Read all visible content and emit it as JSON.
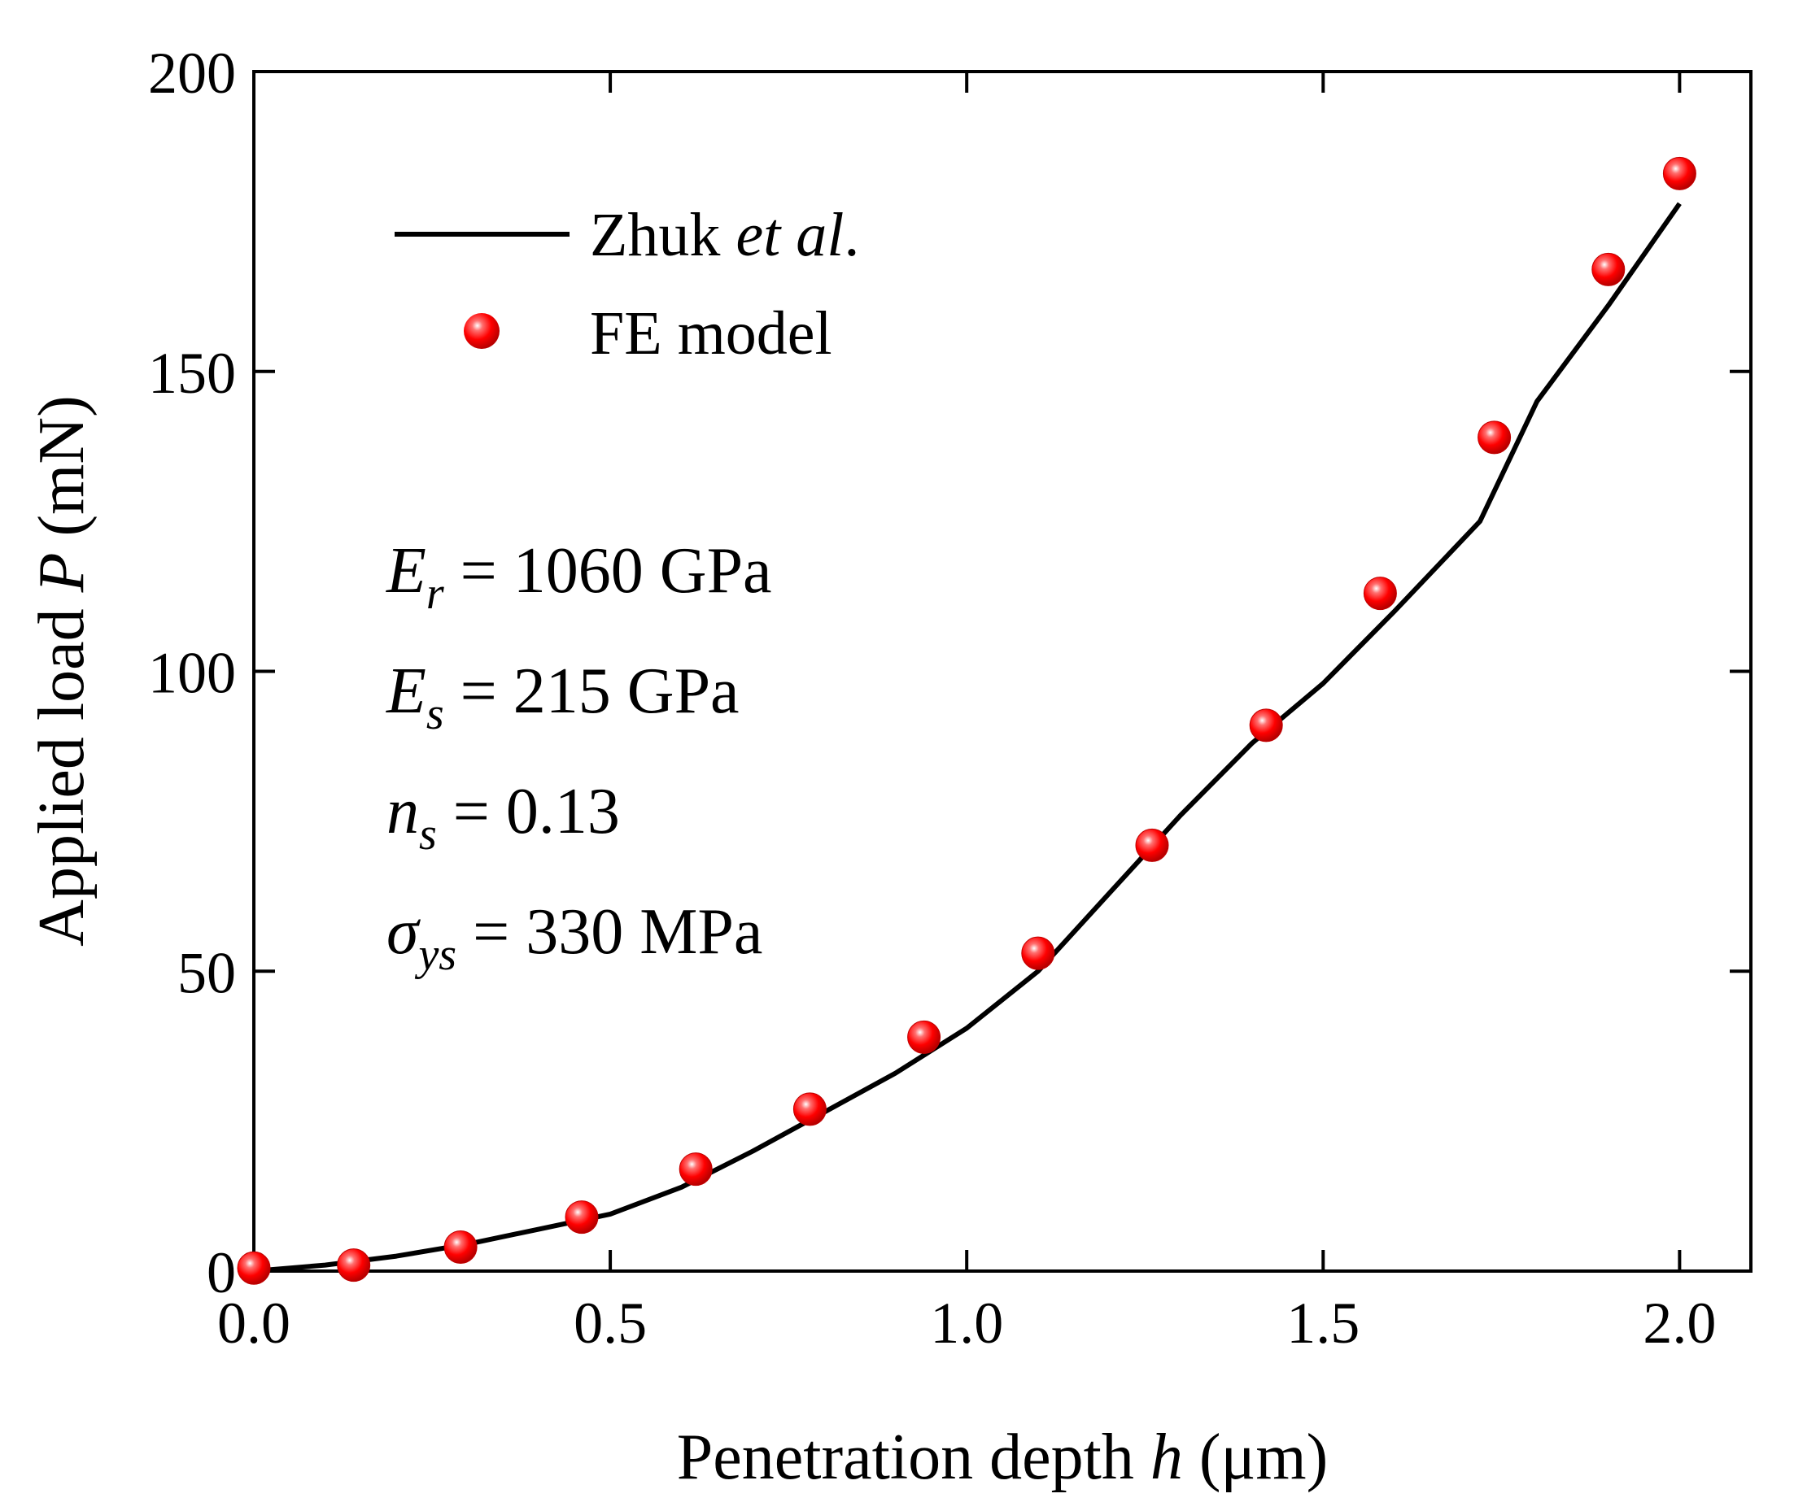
{
  "chart_data": {
    "type": "line",
    "title": "",
    "xlabel": {
      "pre": "Penetration depth ",
      "var": "h",
      "post": " (μm)"
    },
    "ylabel": {
      "pre": "Applied load ",
      "var": "P",
      "post": " (mN)"
    },
    "xlim": [
      0,
      2.1
    ],
    "ylim": [
      0,
      200
    ],
    "x_ticks": [
      0.0,
      0.5,
      1.0,
      1.5,
      2.0
    ],
    "x_tick_labels": [
      "0.0",
      "0.5",
      "1.0",
      "1.5",
      "2.0"
    ],
    "y_ticks": [
      0,
      50,
      100,
      150,
      200
    ],
    "y_tick_labels": [
      "0",
      "50",
      "100",
      "150",
      "200"
    ],
    "grid": false,
    "legend_position": "top-left",
    "series": [
      {
        "name": "Zhuk et al.",
        "name_parts": {
          "pre": "Zhuk ",
          "italic": "et al",
          "post": "."
        },
        "kind": "line",
        "color": "#000000",
        "x": [
          0.0,
          0.1,
          0.2,
          0.3,
          0.4,
          0.5,
          0.6,
          0.7,
          0.8,
          0.9,
          1.0,
          1.1,
          1.2,
          1.3,
          1.4,
          1.5,
          1.6,
          1.72,
          1.8,
          1.9,
          2.0
        ],
        "y": [
          0.0,
          1.0,
          2.5,
          4.5,
          7.0,
          9.5,
          14.0,
          20.0,
          26.5,
          33.0,
          40.5,
          50.0,
          63.0,
          76.0,
          88.0,
          98.0,
          110.0,
          125.0,
          145.0,
          161.0,
          178.0
        ]
      },
      {
        "name": "FE model",
        "kind": "scatter",
        "color": "#ff0000",
        "x": [
          0.0,
          0.14,
          0.29,
          0.46,
          0.62,
          0.78,
          0.94,
          1.1,
          1.26,
          1.42,
          1.58,
          1.74,
          1.9,
          2.0
        ],
        "y": [
          0.5,
          1.0,
          4.0,
          9.0,
          17.0,
          27.0,
          39.0,
          53.0,
          71.0,
          91.0,
          113.0,
          139.0,
          167.0,
          183.0
        ]
      }
    ],
    "annotations": [
      {
        "sym": "E",
        "sub": "r",
        "rest": " = 1060 GPa"
      },
      {
        "sym": "E",
        "sub": "s",
        "rest": " = 215 GPa"
      },
      {
        "sym": "n",
        "sub": "s",
        "rest": " = 0.13"
      },
      {
        "sym": "σ",
        "sub": "ys",
        "rest": " = 330 MPa"
      }
    ]
  }
}
